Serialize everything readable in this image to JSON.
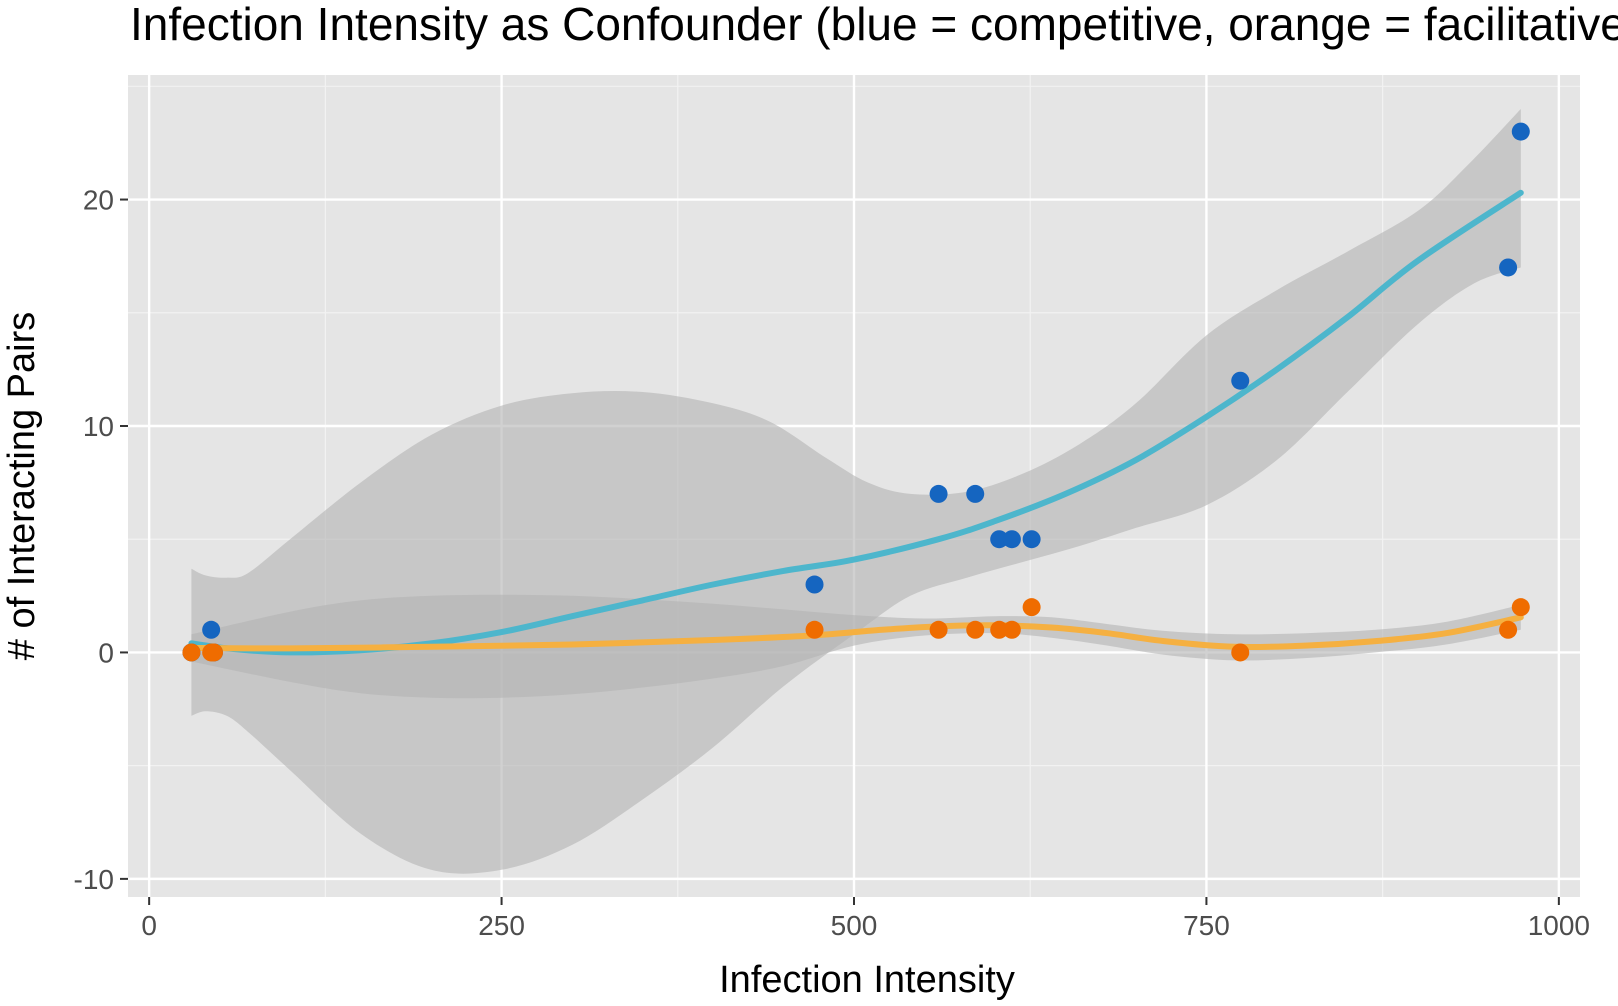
{
  "chart_data": {
    "type": "scatter",
    "title": "Infection Intensity as Confounder (blue = competitive, orange = facilitative)",
    "xlabel": "Infection Intensity",
    "ylabel": "# of Interacting Pairs",
    "xlim": [
      -15,
      1015
    ],
    "ylim": [
      -10.8,
      25.5
    ],
    "x_ticks": [
      0,
      250,
      500,
      750,
      1000
    ],
    "x_tick_labels": [
      "0",
      "250",
      "500",
      "750",
      "1000"
    ],
    "y_ticks": [
      -10,
      0,
      10,
      20
    ],
    "y_tick_labels": [
      "-10",
      "0",
      "10",
      "20"
    ],
    "grid": true,
    "legend": "none",
    "colors": {
      "panel_background": "#e5e5e5",
      "grid_major": "#ffffff",
      "grid_minor": "#f2f2f2",
      "ribbon": "#b3b3b3",
      "competitive_points": "#1565c0",
      "facilitative_points": "#ef6c00",
      "competitive_line": "#4db6cc",
      "facilitative_line": "#f5b041",
      "tick_text": "#4d4d4d",
      "tick_mark": "#333333"
    },
    "series": [
      {
        "color_key": "competitive",
        "points": [
          {
            "x": 30,
            "y": 0
          },
          {
            "x": 44,
            "y": 1
          },
          {
            "x": 46,
            "y": 0
          },
          {
            "x": 472,
            "y": 3
          },
          {
            "x": 560,
            "y": 7
          },
          {
            "x": 586,
            "y": 7
          },
          {
            "x": 603,
            "y": 5
          },
          {
            "x": 612,
            "y": 5
          },
          {
            "x": 626,
            "y": 5
          },
          {
            "x": 774,
            "y": 12
          },
          {
            "x": 964,
            "y": 17
          },
          {
            "x": 973,
            "y": 23
          }
        ],
        "smooth": [
          {
            "x": 30,
            "y": 0.4
          },
          {
            "x": 60,
            "y": 0.15
          },
          {
            "x": 100,
            "y": 0.0
          },
          {
            "x": 150,
            "y": 0.1
          },
          {
            "x": 200,
            "y": 0.4
          },
          {
            "x": 250,
            "y": 0.9
          },
          {
            "x": 300,
            "y": 1.6
          },
          {
            "x": 350,
            "y": 2.3
          },
          {
            "x": 400,
            "y": 3.0
          },
          {
            "x": 450,
            "y": 3.6
          },
          {
            "x": 500,
            "y": 4.1
          },
          {
            "x": 560,
            "y": 5.0
          },
          {
            "x": 600,
            "y": 5.8
          },
          {
            "x": 650,
            "y": 7.0
          },
          {
            "x": 700,
            "y": 8.5
          },
          {
            "x": 750,
            "y": 10.4
          },
          {
            "x": 800,
            "y": 12.5
          },
          {
            "x": 850,
            "y": 14.8
          },
          {
            "x": 900,
            "y": 17.3
          },
          {
            "x": 973,
            "y": 20.3
          }
        ],
        "ribbon_upper": [
          {
            "x": 30,
            "y": 3.7
          },
          {
            "x": 40,
            "y": 3.4
          },
          {
            "x": 55,
            "y": 3.3
          },
          {
            "x": 70,
            "y": 3.5
          },
          {
            "x": 100,
            "y": 5.0
          },
          {
            "x": 150,
            "y": 7.5
          },
          {
            "x": 200,
            "y": 9.6
          },
          {
            "x": 250,
            "y": 10.9
          },
          {
            "x": 300,
            "y": 11.45
          },
          {
            "x": 350,
            "y": 11.5
          },
          {
            "x": 400,
            "y": 11.0
          },
          {
            "x": 440,
            "y": 10.2
          },
          {
            "x": 480,
            "y": 8.6
          },
          {
            "x": 510,
            "y": 7.5
          },
          {
            "x": 540,
            "y": 7.0
          },
          {
            "x": 580,
            "y": 7.1
          },
          {
            "x": 620,
            "y": 7.9
          },
          {
            "x": 660,
            "y": 9.2
          },
          {
            "x": 700,
            "y": 11.0
          },
          {
            "x": 750,
            "y": 14.0
          },
          {
            "x": 800,
            "y": 16.0
          },
          {
            "x": 850,
            "y": 17.7
          },
          {
            "x": 900,
            "y": 19.5
          },
          {
            "x": 935,
            "y": 21.5
          },
          {
            "x": 973,
            "y": 24.0
          }
        ],
        "ribbon_lower": [
          {
            "x": 30,
            "y": -2.8
          },
          {
            "x": 40,
            "y": -2.6
          },
          {
            "x": 55,
            "y": -2.8
          },
          {
            "x": 70,
            "y": -3.5
          },
          {
            "x": 100,
            "y": -5.2
          },
          {
            "x": 150,
            "y": -8.0
          },
          {
            "x": 200,
            "y": -9.6
          },
          {
            "x": 250,
            "y": -9.6
          },
          {
            "x": 300,
            "y": -8.5
          },
          {
            "x": 350,
            "y": -6.5
          },
          {
            "x": 400,
            "y": -4.2
          },
          {
            "x": 450,
            "y": -1.5
          },
          {
            "x": 500,
            "y": 0.8
          },
          {
            "x": 540,
            "y": 2.5
          },
          {
            "x": 580,
            "y": 3.3
          },
          {
            "x": 620,
            "y": 4.0
          },
          {
            "x": 660,
            "y": 4.7
          },
          {
            "x": 700,
            "y": 5.5
          },
          {
            "x": 750,
            "y": 6.5
          },
          {
            "x": 800,
            "y": 8.5
          },
          {
            "x": 850,
            "y": 11.5
          },
          {
            "x": 900,
            "y": 14.5
          },
          {
            "x": 940,
            "y": 16.3
          },
          {
            "x": 973,
            "y": 17.0
          }
        ]
      },
      {
        "color_key": "facilitative",
        "points": [
          {
            "x": 30,
            "y": 0
          },
          {
            "x": 44,
            "y": 0
          },
          {
            "x": 46,
            "y": 0
          },
          {
            "x": 472,
            "y": 1
          },
          {
            "x": 560,
            "y": 1
          },
          {
            "x": 586,
            "y": 1
          },
          {
            "x": 603,
            "y": 1
          },
          {
            "x": 612,
            "y": 1
          },
          {
            "x": 626,
            "y": 2
          },
          {
            "x": 774,
            "y": 0
          },
          {
            "x": 964,
            "y": 1
          },
          {
            "x": 973,
            "y": 2
          }
        ],
        "smooth": [
          {
            "x": 30,
            "y": 0.2
          },
          {
            "x": 100,
            "y": 0.18
          },
          {
            "x": 200,
            "y": 0.25
          },
          {
            "x": 300,
            "y": 0.35
          },
          {
            "x": 400,
            "y": 0.55
          },
          {
            "x": 470,
            "y": 0.75
          },
          {
            "x": 520,
            "y": 1.0
          },
          {
            "x": 560,
            "y": 1.15
          },
          {
            "x": 600,
            "y": 1.2
          },
          {
            "x": 640,
            "y": 1.1
          },
          {
            "x": 680,
            "y": 0.85
          },
          {
            "x": 720,
            "y": 0.5
          },
          {
            "x": 770,
            "y": 0.25
          },
          {
            "x": 820,
            "y": 0.3
          },
          {
            "x": 870,
            "y": 0.5
          },
          {
            "x": 920,
            "y": 0.85
          },
          {
            "x": 973,
            "y": 1.55
          }
        ],
        "ribbon_upper": [
          {
            "x": 30,
            "y": 0.8
          },
          {
            "x": 100,
            "y": 1.8
          },
          {
            "x": 150,
            "y": 2.3
          },
          {
            "x": 200,
            "y": 2.5
          },
          {
            "x": 250,
            "y": 2.55
          },
          {
            "x": 300,
            "y": 2.5
          },
          {
            "x": 350,
            "y": 2.35
          },
          {
            "x": 400,
            "y": 2.15
          },
          {
            "x": 450,
            "y": 1.9
          },
          {
            "x": 500,
            "y": 1.65
          },
          {
            "x": 550,
            "y": 1.5
          },
          {
            "x": 600,
            "y": 1.6
          },
          {
            "x": 640,
            "y": 1.55
          },
          {
            "x": 680,
            "y": 1.25
          },
          {
            "x": 720,
            "y": 0.95
          },
          {
            "x": 770,
            "y": 0.8
          },
          {
            "x": 820,
            "y": 0.85
          },
          {
            "x": 870,
            "y": 1.0
          },
          {
            "x": 920,
            "y": 1.35
          },
          {
            "x": 973,
            "y": 2.1
          }
        ],
        "ribbon_lower": [
          {
            "x": 30,
            "y": -0.4
          },
          {
            "x": 100,
            "y": -1.3
          },
          {
            "x": 150,
            "y": -1.8
          },
          {
            "x": 200,
            "y": -2.0
          },
          {
            "x": 250,
            "y": -2.0
          },
          {
            "x": 300,
            "y": -1.85
          },
          {
            "x": 350,
            "y": -1.55
          },
          {
            "x": 400,
            "y": -1.15
          },
          {
            "x": 450,
            "y": -0.6
          },
          {
            "x": 500,
            "y": 0.3
          },
          {
            "x": 550,
            "y": 0.75
          },
          {
            "x": 600,
            "y": 0.85
          },
          {
            "x": 640,
            "y": 0.65
          },
          {
            "x": 680,
            "y": 0.3
          },
          {
            "x": 720,
            "y": -0.1
          },
          {
            "x": 770,
            "y": -0.35
          },
          {
            "x": 820,
            "y": -0.25
          },
          {
            "x": 870,
            "y": 0.0
          },
          {
            "x": 920,
            "y": 0.35
          },
          {
            "x": 973,
            "y": 1.0
          }
        ]
      }
    ]
  }
}
